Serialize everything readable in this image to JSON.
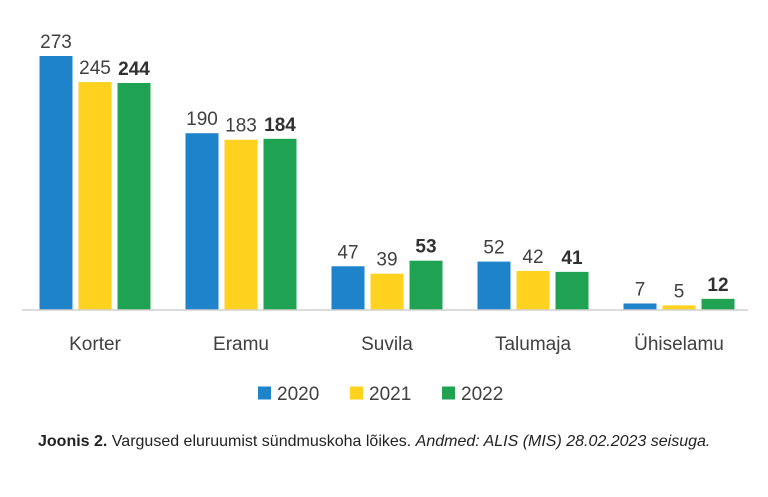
{
  "chart_data": {
    "type": "bar",
    "categories": [
      "Korter",
      "Eramu",
      "Suvila",
      "Talumaja",
      "Ühiselamu"
    ],
    "series": [
      {
        "name": "2020",
        "values": [
          273,
          190,
          47,
          52,
          7
        ],
        "color": "#1F83C9"
      },
      {
        "name": "2021",
        "values": [
          245,
          183,
          39,
          42,
          5
        ],
        "color": "#FFD21F"
      },
      {
        "name": "2022",
        "values": [
          244,
          184,
          53,
          41,
          12
        ],
        "color": "#1FA352"
      }
    ],
    "ylim": [
      0,
      273
    ],
    "grid": false,
    "legend": "bottom",
    "data_labels": true,
    "bold_series": "2022"
  },
  "caption": {
    "figure_label": "Joonis 2.",
    "text": " Vargused eluruumist sündmuskoha lõikes. ",
    "source": "Andmed: ALIS (MIS) 28.02.2023 seisuga."
  }
}
